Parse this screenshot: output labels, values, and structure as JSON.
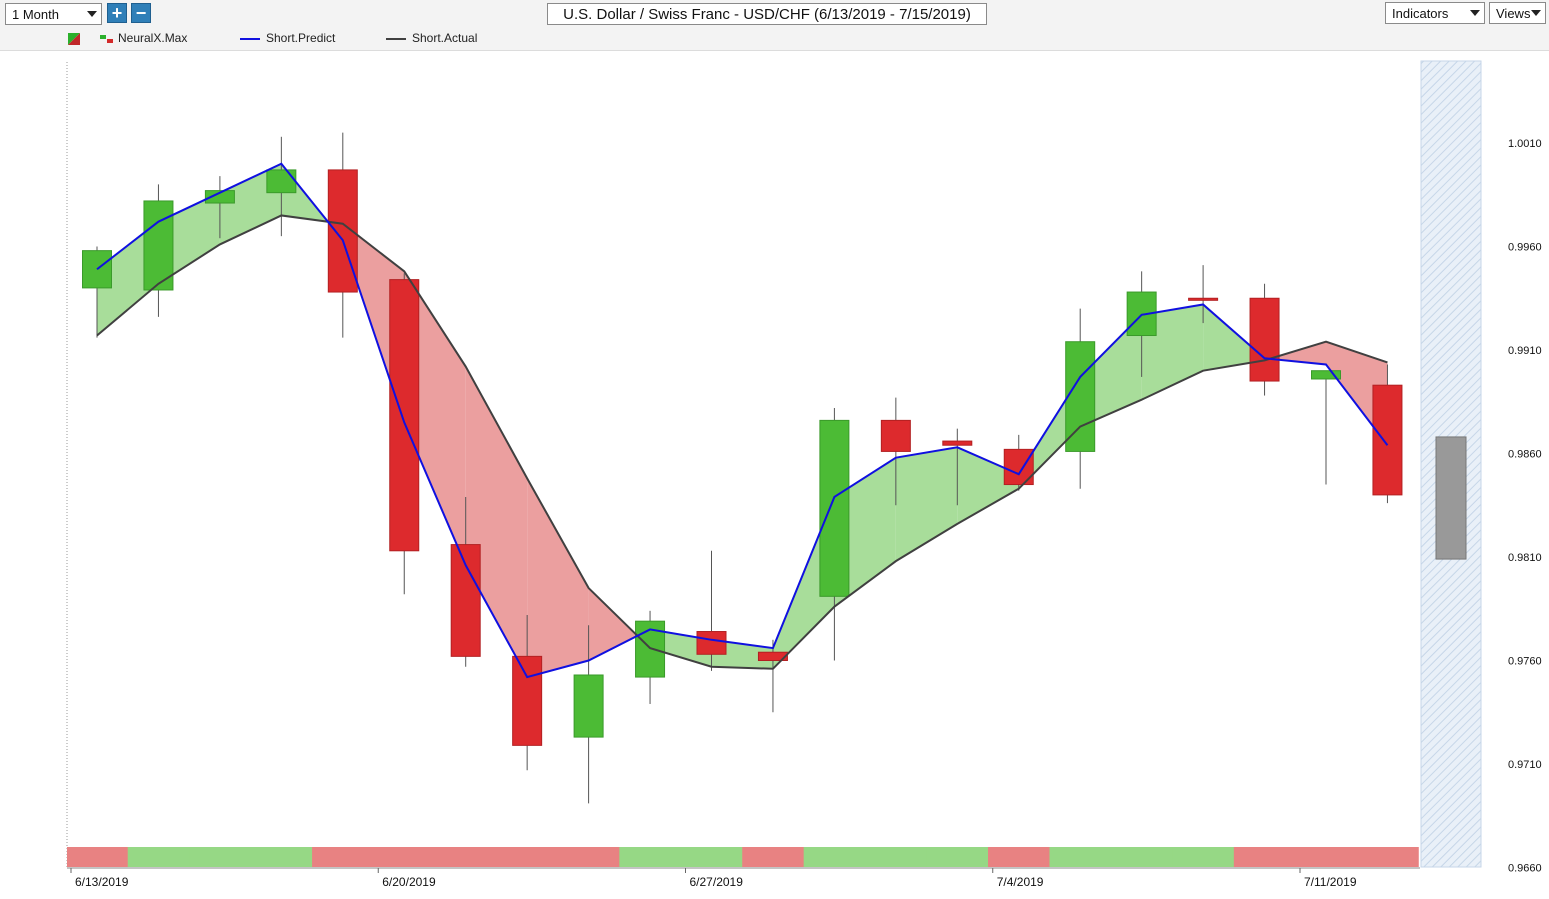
{
  "toolbar": {
    "period": "1 Month",
    "title": "U.S. Dollar / Swiss Franc - USD/CHF (6/13/2019 - 7/15/2019)",
    "indicators_label": "Indicators",
    "views_label": "Views",
    "zoom_in_icon": "plus-icon",
    "zoom_out_icon": "minus-icon"
  },
  "legend": [
    {
      "label": "NeuralX.Max",
      "color": "#2bb02b"
    },
    {
      "label": "Short.Predict",
      "color": "#1010e0"
    },
    {
      "label": "Short.Actual",
      "color": "#404040"
    }
  ],
  "colors": {
    "up": "#4cbb35",
    "down": "#dd2a2d",
    "predict": "#1010e0",
    "actual": "#404040",
    "fill_up": "#a8dd9a",
    "fill_down": "#eb9f9f",
    "band_up": "#96d885",
    "band_down": "#e88282",
    "forecast_bar": "#999999"
  },
  "chart_data": {
    "type": "candlestick",
    "ylim": [
      0.966,
      1.003
    ],
    "y_ticks": [
      "1.0010",
      "0.9960",
      "0.9910",
      "0.9860",
      "0.9810",
      "0.9760",
      "0.9710",
      "0.9660"
    ],
    "x_labels": [
      {
        "label": "6/13/2019",
        "index": 0
      },
      {
        "label": "6/20/2019",
        "index": 5
      },
      {
        "label": "6/27/2019",
        "index": 10
      },
      {
        "label": "7/4/2019",
        "index": 15
      },
      {
        "label": "7/11/2019",
        "index": 20
      }
    ],
    "candles": [
      {
        "date": "6/13/2019",
        "open": 0.994,
        "high": 0.996,
        "low": 0.9916,
        "close": 0.9958
      },
      {
        "date": "6/14/2019",
        "open": 0.9939,
        "high": 0.999,
        "low": 0.9926,
        "close": 0.9982
      },
      {
        "date": "6/17/2019",
        "open": 0.9981,
        "high": 0.9994,
        "low": 0.9964,
        "close": 0.9987
      },
      {
        "date": "6/18/2019",
        "open": 0.9986,
        "high": 1.0013,
        "low": 0.9965,
        "close": 0.9997
      },
      {
        "date": "6/19/2019",
        "open": 0.9997,
        "high": 1.0015,
        "low": 0.9916,
        "close": 0.9938
      },
      {
        "date": "6/20/2019",
        "open": 0.9944,
        "high": 0.9947,
        "low": 0.9792,
        "close": 0.9813
      },
      {
        "date": "6/21/2019",
        "open": 0.9816,
        "high": 0.9839,
        "low": 0.9757,
        "close": 0.9762
      },
      {
        "date": "6/24/2019",
        "open": 0.9762,
        "high": 0.9782,
        "low": 0.9707,
        "close": 0.9719
      },
      {
        "date": "6/25/2019",
        "open": 0.9723,
        "high": 0.9777,
        "low": 0.9691,
        "close": 0.9753
      },
      {
        "date": "6/26/2019",
        "open": 0.9752,
        "high": 0.9784,
        "low": 0.9739,
        "close": 0.9779
      },
      {
        "date": "6/27/2019",
        "open": 0.9774,
        "high": 0.9813,
        "low": 0.9755,
        "close": 0.9763
      },
      {
        "date": "6/28/2019",
        "open": 0.9764,
        "high": 0.977,
        "low": 0.9735,
        "close": 0.976
      },
      {
        "date": "7/1/2019",
        "open": 0.9791,
        "high": 0.9882,
        "low": 0.976,
        "close": 0.9876
      },
      {
        "date": "7/2/2019",
        "open": 0.9876,
        "high": 0.9887,
        "low": 0.9835,
        "close": 0.9861
      },
      {
        "date": "7/3/2019",
        "open": 0.9866,
        "high": 0.9872,
        "low": 0.9835,
        "close": 0.9864
      },
      {
        "date": "7/4/2019",
        "open": 0.9862,
        "high": 0.9869,
        "low": 0.9842,
        "close": 0.9845
      },
      {
        "date": "7/5/2019",
        "open": 0.9861,
        "high": 0.993,
        "low": 0.9843,
        "close": 0.9914
      },
      {
        "date": "7/8/2019",
        "open": 0.9917,
        "high": 0.9948,
        "low": 0.9897,
        "close": 0.9938
      },
      {
        "date": "7/9/2019",
        "open": 0.9935,
        "high": 0.9951,
        "low": 0.9923,
        "close": 0.9934
      },
      {
        "date": "7/10/2019",
        "open": 0.9935,
        "high": 0.9942,
        "low": 0.9888,
        "close": 0.9895
      },
      {
        "date": "7/11/2019",
        "open": 0.9896,
        "high": 0.9897,
        "low": 0.9845,
        "close": 0.99
      },
      {
        "date": "7/12/2019",
        "open": 0.9893,
        "high": 0.9903,
        "low": 0.9836,
        "close": 0.984
      }
    ],
    "series": [
      {
        "name": "Short.Predict",
        "values": [
          0.9949,
          0.9972,
          0.9986,
          1.0,
          0.9963,
          0.9875,
          0.9806,
          0.9752,
          0.976,
          0.9775,
          0.977,
          0.9766,
          0.9839,
          0.9858,
          0.9863,
          0.985,
          0.9897,
          0.9927,
          0.9932,
          0.9906,
          0.9903,
          0.9864
        ]
      },
      {
        "name": "Short.Actual",
        "values": [
          0.9917,
          0.9942,
          0.9961,
          0.9975,
          0.9971,
          0.9948,
          0.9902,
          0.9848,
          0.9795,
          0.9766,
          0.9757,
          0.9756,
          0.9786,
          0.9808,
          0.9826,
          0.9843,
          0.9873,
          0.9886,
          0.99,
          0.9905,
          0.9914,
          0.9904
        ]
      }
    ],
    "signal_band": [
      "down",
      "up",
      "up",
      "up",
      "down",
      "down",
      "down",
      "down",
      "down",
      "up",
      "up",
      "down",
      "up",
      "up",
      "up",
      "down",
      "up",
      "up",
      "up",
      "down",
      "down",
      "down"
    ],
    "forecast_bar": {
      "open": 0.9868,
      "close": 0.9809
    },
    "grid": false
  }
}
